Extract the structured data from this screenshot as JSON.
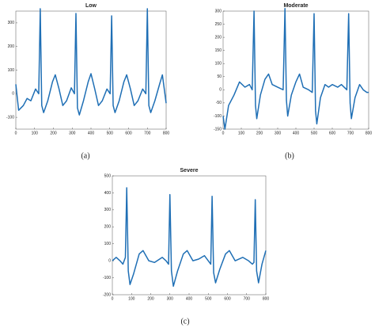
{
  "chart_data": [
    {
      "type": "line",
      "title": "Low",
      "caption": "(a)",
      "color": "#1f6fb5",
      "x": [
        0,
        15,
        40,
        60,
        80,
        105,
        122,
        130,
        138,
        148,
        170,
        195,
        210,
        230,
        250,
        270,
        295,
        312,
        320,
        328,
        338,
        360,
        385,
        400,
        420,
        440,
        460,
        485,
        502,
        510,
        518,
        528,
        550,
        575,
        590,
        610,
        630,
        650,
        675,
        692,
        700,
        708,
        718,
        740,
        765,
        780,
        800
      ],
      "values": [
        40,
        -70,
        -50,
        -20,
        -30,
        20,
        0,
        360,
        -50,
        -80,
        -30,
        50,
        80,
        20,
        -50,
        -30,
        25,
        0,
        340,
        -60,
        -90,
        -30,
        50,
        85,
        20,
        -50,
        -30,
        20,
        0,
        330,
        -50,
        -80,
        -30,
        50,
        80,
        20,
        -50,
        -30,
        20,
        0,
        360,
        -50,
        -80,
        -30,
        40,
        80,
        -40
      ],
      "xlim": [
        0,
        800
      ],
      "xticks": [
        0,
        100,
        200,
        300,
        400,
        500,
        600,
        700,
        800
      ],
      "ylim": [
        -150,
        350
      ],
      "yticks": [
        -100,
        0,
        100,
        200,
        300
      ]
    },
    {
      "type": "line",
      "title": "Moderate",
      "caption": "(b)",
      "color": "#1f6fb5",
      "x": [
        0,
        10,
        30,
        60,
        90,
        120,
        145,
        160,
        170,
        178,
        185,
        205,
        230,
        250,
        270,
        300,
        330,
        340,
        348,
        355,
        375,
        400,
        420,
        440,
        470,
        490,
        500,
        508,
        515,
        535,
        560,
        580,
        600,
        630,
        650,
        680,
        690,
        698,
        705,
        725,
        750,
        770,
        790,
        800
      ],
      "values": [
        -100,
        -150,
        -60,
        -20,
        30,
        10,
        20,
        0,
        300,
        -60,
        -110,
        -20,
        40,
        60,
        20,
        10,
        0,
        310,
        -40,
        -100,
        -20,
        30,
        60,
        10,
        0,
        -10,
        290,
        -80,
        -130,
        -30,
        20,
        10,
        20,
        10,
        20,
        0,
        290,
        -50,
        -110,
        -30,
        20,
        0,
        -10,
        -10
      ],
      "xlim": [
        0,
        800
      ],
      "xticks": [
        0,
        100,
        200,
        300,
        400,
        500,
        600,
        700,
        800
      ],
      "ylim": [
        -150,
        300
      ],
      "yticks": [
        -150,
        -100,
        -50,
        0,
        50,
        100,
        150,
        200,
        250,
        300
      ]
    },
    {
      "type": "line",
      "title": "Severe",
      "caption": "(c)",
      "color": "#1f6fb5",
      "x": [
        0,
        20,
        40,
        55,
        68,
        75,
        83,
        92,
        110,
        140,
        160,
        190,
        220,
        260,
        280,
        293,
        300,
        308,
        318,
        340,
        370,
        390,
        420,
        450,
        480,
        500,
        513,
        520,
        528,
        538,
        560,
        590,
        610,
        640,
        680,
        710,
        730,
        738,
        745,
        752,
        762,
        780,
        800
      ],
      "values": [
        0,
        20,
        0,
        -20,
        20,
        430,
        -60,
        -140,
        -80,
        40,
        60,
        0,
        -10,
        20,
        0,
        -20,
        390,
        -60,
        -150,
        -60,
        40,
        60,
        0,
        10,
        30,
        0,
        -20,
        380,
        -70,
        -130,
        -50,
        40,
        60,
        0,
        20,
        0,
        -20,
        -10,
        360,
        -60,
        -130,
        -20,
        60
      ],
      "xlim": [
        0,
        800
      ],
      "xticks": [
        0,
        100,
        200,
        300,
        400,
        500,
        600,
        700,
        800
      ],
      "ylim": [
        -200,
        500
      ],
      "yticks": [
        -200,
        -100,
        0,
        100,
        200,
        300,
        400,
        500
      ]
    }
  ]
}
